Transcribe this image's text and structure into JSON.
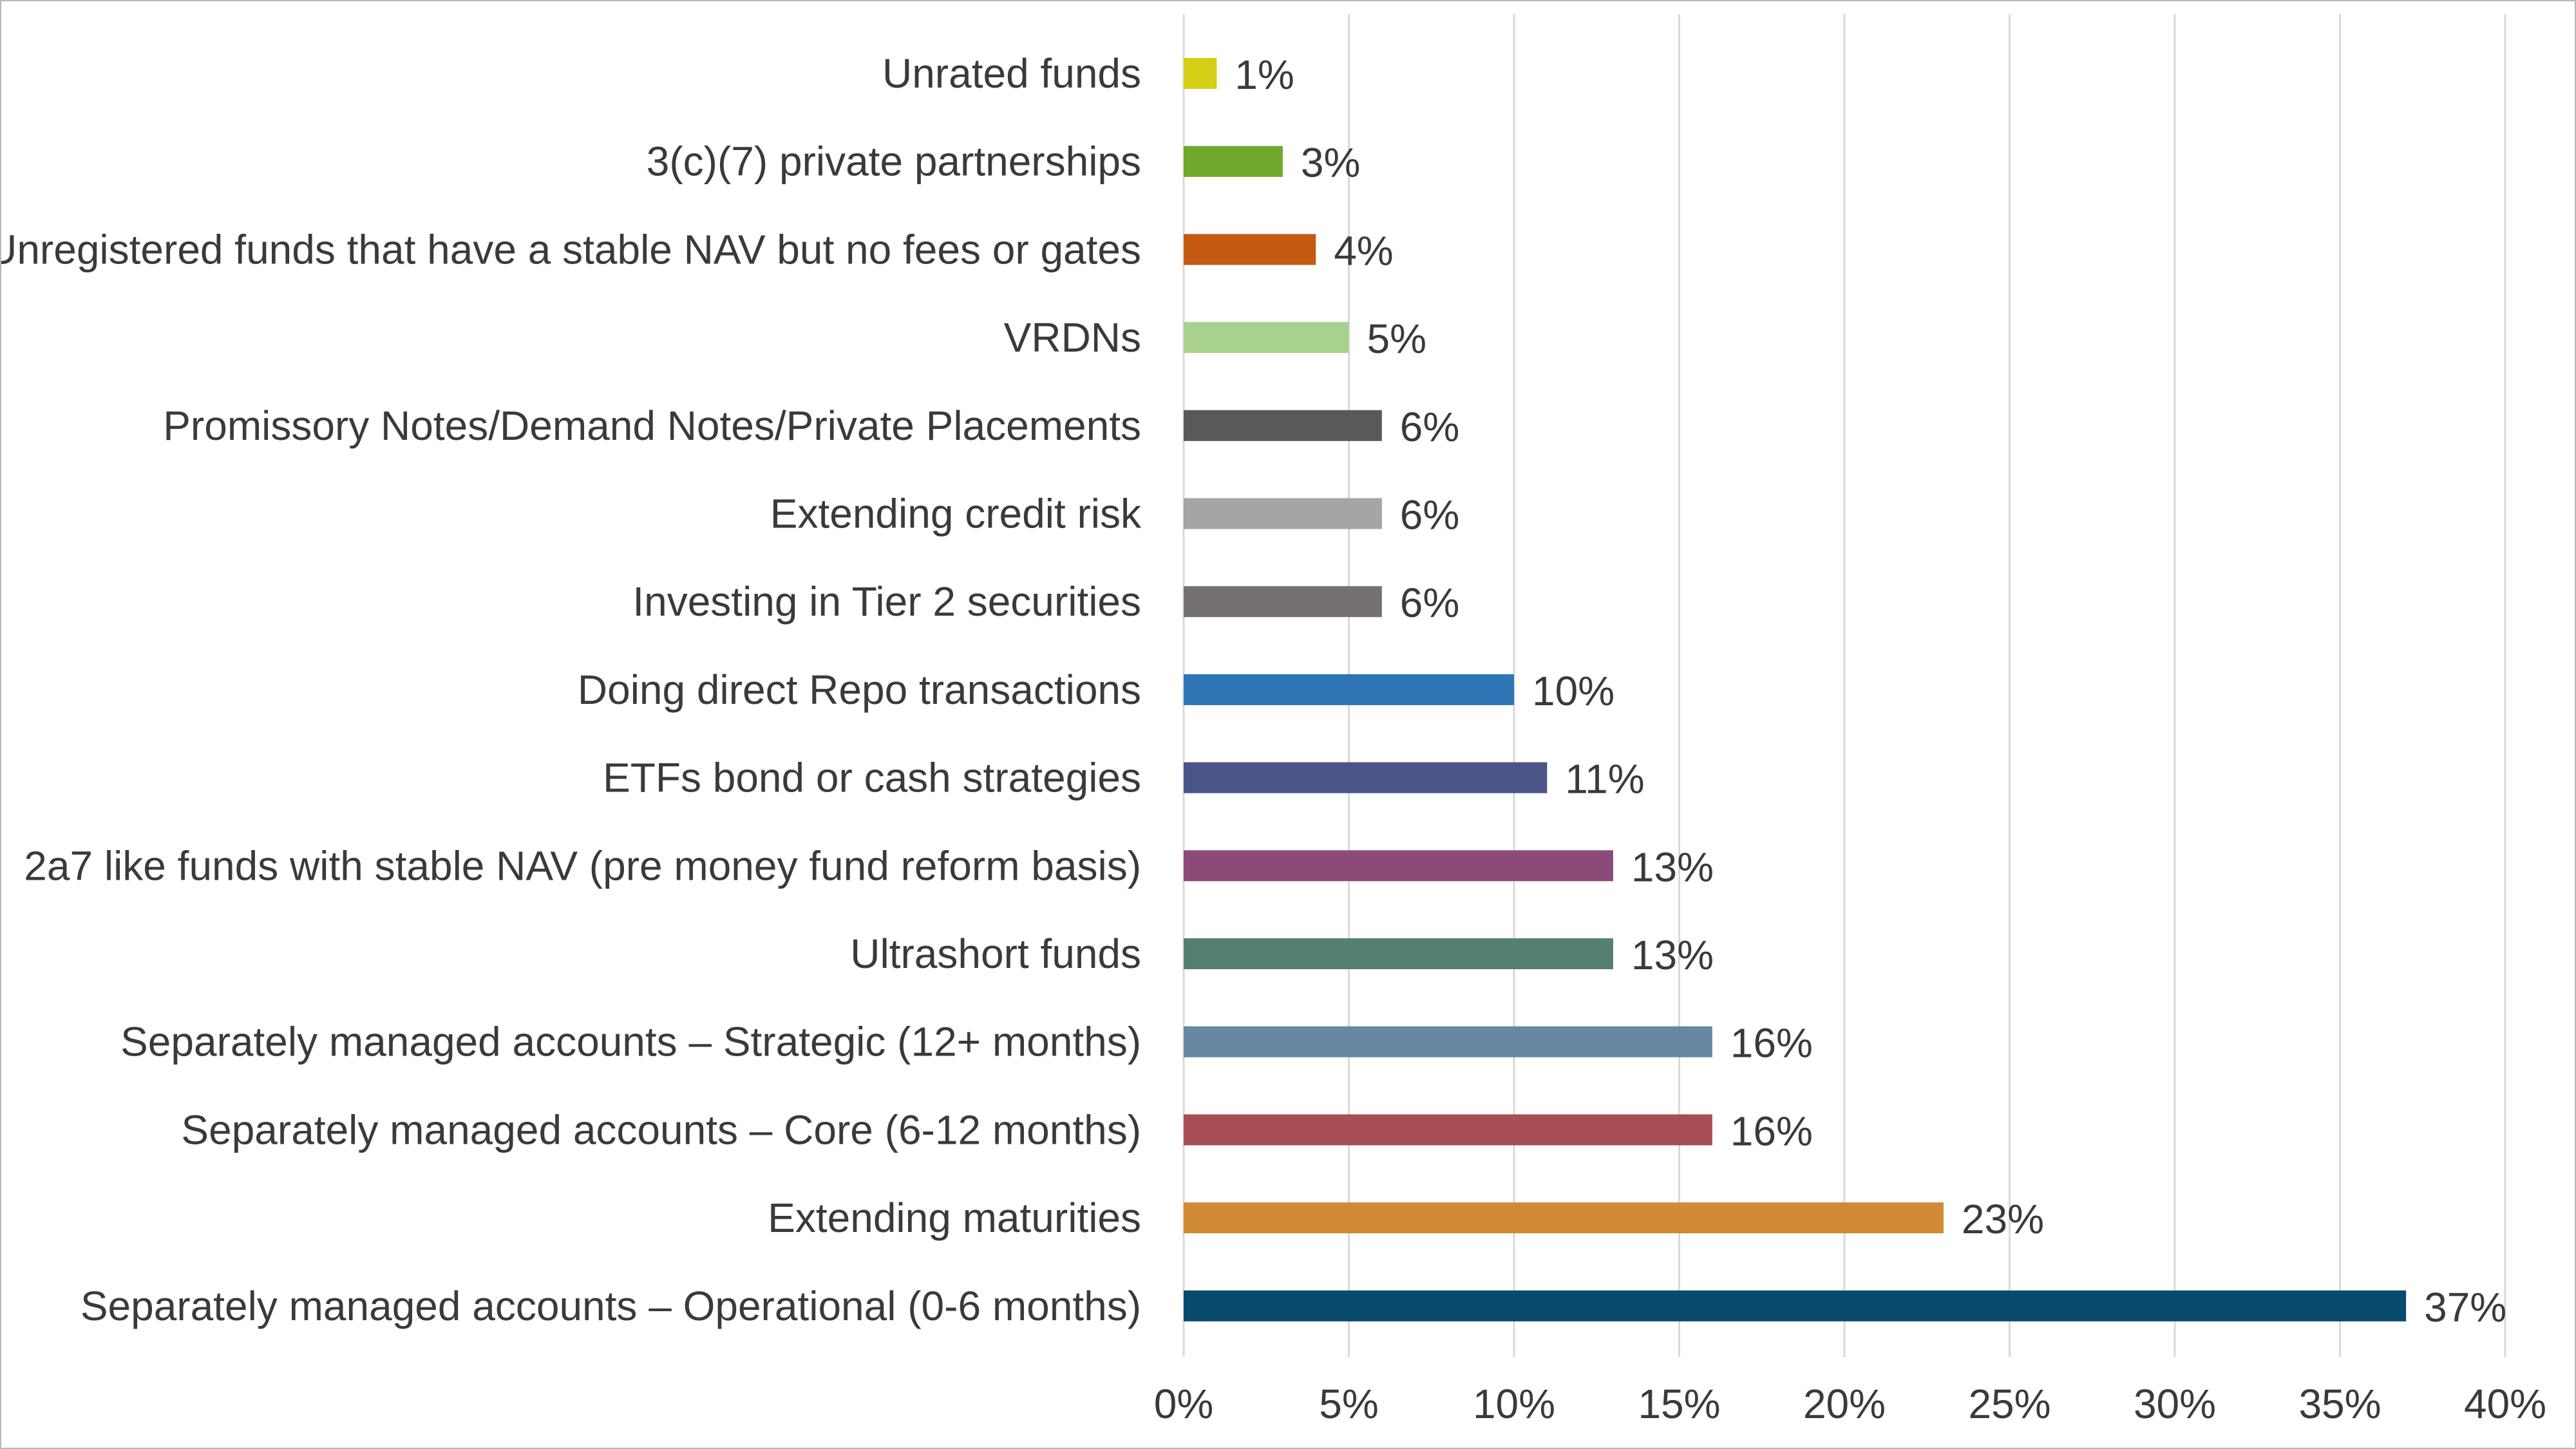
{
  "chart_data": {
    "type": "bar",
    "orientation": "horizontal",
    "title": "",
    "xlabel": "",
    "ylabel": "",
    "xlim": [
      0,
      40
    ],
    "x_ticks": [
      "0%",
      "5%",
      "10%",
      "15%",
      "20%",
      "25%",
      "30%",
      "35%",
      "40%"
    ],
    "grid": "vertical",
    "legend": "none",
    "categories": [
      "Unrated funds",
      "3(c)(7) private partnerships",
      "Unregistered funds that have a stable NAV but no fees or gates",
      "VRDNs",
      "Promissory Notes/Demand Notes/Private Placements",
      "Extending credit risk",
      "Investing in Tier 2 securities",
      "Doing direct Repo transactions",
      "ETFs bond or cash strategies",
      "2a7 like funds with stable NAV (pre money fund reform basis)",
      "Ultrashort funds",
      "Separately managed accounts – Strategic (12+ months)",
      "Separately managed accounts – Core (6-12 months)",
      "Extending maturities",
      "Separately managed accounts – Operational (0-6 months)"
    ],
    "values": [
      1,
      3,
      4,
      5,
      6,
      6,
      6,
      10,
      11,
      13,
      13,
      16,
      16,
      23,
      37
    ],
    "value_labels": [
      "1%",
      "3%",
      "4%",
      "5%",
      "6%",
      "6%",
      "6%",
      "10%",
      "11%",
      "13%",
      "13%",
      "16%",
      "16%",
      "23%",
      "37%"
    ],
    "colors": [
      "#d4cf14",
      "#70a82e",
      "#c55a11",
      "#a9d18e",
      "#595959",
      "#a5a5a5",
      "#767171",
      "#2e75b6",
      "#4a5487",
      "#8b4a78",
      "#548073",
      "#6688a0",
      "#a84d55",
      "#d18a35",
      "#084a6e"
    ]
  }
}
